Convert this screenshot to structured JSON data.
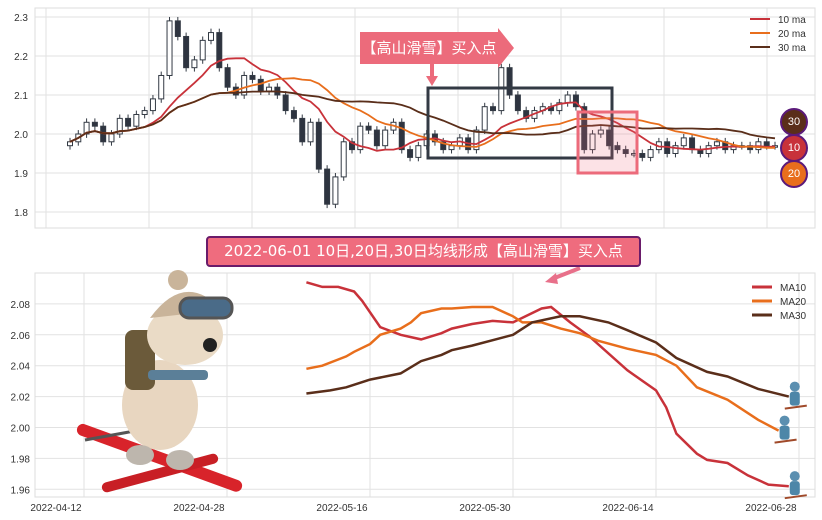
{
  "chart_data": [
    {
      "type": "candlestick",
      "ylim": [
        1.759,
        2.323
      ],
      "yticks": [
        1.8,
        1.9,
        2.0,
        2.1,
        2.2,
        2.3
      ],
      "grid": true,
      "legend_placement": "top-right",
      "ma_windows": [
        10,
        20,
        30
      ],
      "legend": [
        {
          "name": "10 ma",
          "color": "#c8323a"
        },
        {
          "name": "20 ma",
          "color": "#e86e1c"
        },
        {
          "name": "30 ma",
          "color": "#5a2e1a"
        }
      ],
      "up_color": "#ffffff",
      "down_color": "#2e3440",
      "close": [
        1.98,
        2.0,
        2.03,
        2.02,
        1.98,
        2.0,
        2.04,
        2.02,
        2.05,
        2.06,
        2.09,
        2.15,
        2.29,
        2.25,
        2.17,
        2.19,
        2.24,
        2.26,
        2.17,
        2.12,
        2.1,
        2.15,
        2.14,
        2.11,
        2.12,
        2.1,
        2.06,
        2.04,
        1.98,
        2.03,
        1.91,
        1.82,
        1.89,
        1.98,
        1.96,
        2.02,
        2.01,
        1.97,
        2.01,
        2.03,
        1.96,
        1.94,
        1.97,
        2.0,
        1.98,
        1.96,
        1.97,
        1.99,
        1.96,
        2.01,
        2.07,
        2.06,
        2.17,
        2.1,
        2.06,
        2.04,
        2.06,
        2.07,
        2.06,
        2.08,
        2.1,
        2.07,
        1.96,
        2.0,
        2.01,
        1.97,
        1.96,
        1.95,
        1.95,
        1.94,
        1.96,
        1.98,
        1.95,
        1.97,
        1.99,
        1.96,
        1.95,
        1.97,
        1.98,
        1.96,
        1.97,
        1.97,
        1.96,
        1.98,
        1.97,
        1.97
      ]
    },
    {
      "type": "line",
      "ylim": [
        1.955,
        2.1
      ],
      "yticks": [
        1.96,
        1.98,
        2.0,
        2.02,
        2.04,
        2.06,
        2.08
      ],
      "xticks": [
        "2022-04-12",
        "2022-04-28",
        "2022-05-16",
        "2022-05-30",
        "2022-06-14",
        "2022-06-28"
      ],
      "grid": true,
      "legend_placement": "top-right",
      "series": [
        {
          "name": "MA10",
          "color": "#c8323a",
          "points": [
            [
              "2022-05-08",
              2.094
            ],
            [
              "2022-05-10",
              2.091
            ],
            [
              "2022-05-12",
              2.091
            ],
            [
              "2022-05-14",
              2.088
            ],
            [
              "2022-05-15",
              2.082
            ],
            [
              "2022-05-17",
              2.065
            ],
            [
              "2022-05-19",
              2.06
            ],
            [
              "2022-05-21",
              2.057
            ],
            [
              "2022-05-23",
              2.061
            ],
            [
              "2022-05-24",
              2.064
            ],
            [
              "2022-05-26",
              2.067
            ],
            [
              "2022-05-28",
              2.069
            ],
            [
              "2022-05-30",
              2.068
            ],
            [
              "2022-05-31",
              2.071
            ],
            [
              "2022-06-02",
              2.077
            ],
            [
              "2022-06-03",
              2.078
            ],
            [
              "2022-06-05",
              2.068
            ],
            [
              "2022-06-07",
              2.059
            ],
            [
              "2022-06-11",
              2.037
            ],
            [
              "2022-06-14",
              2.024
            ],
            [
              "2022-06-15",
              2.013
            ],
            [
              "2022-06-16",
              1.996
            ],
            [
              "2022-06-18",
              1.983
            ],
            [
              "2022-06-19",
              1.979
            ],
            [
              "2022-06-21",
              1.977
            ],
            [
              "2022-06-23",
              1.969
            ],
            [
              "2022-06-25",
              1.963
            ],
            [
              "2022-06-27",
              1.962
            ]
          ]
        },
        {
          "name": "MA20",
          "color": "#e86e1c",
          "points": [
            [
              "2022-05-08",
              2.038
            ],
            [
              "2022-05-10",
              2.04
            ],
            [
              "2022-05-12",
              2.044
            ],
            [
              "2022-05-13",
              2.046
            ],
            [
              "2022-05-14",
              2.049
            ],
            [
              "2022-05-16",
              2.054
            ],
            [
              "2022-05-17",
              2.06
            ],
            [
              "2022-05-19",
              2.064
            ],
            [
              "2022-05-20",
              2.068
            ],
            [
              "2022-05-21",
              2.074
            ],
            [
              "2022-05-23",
              2.077
            ],
            [
              "2022-05-24",
              2.077
            ],
            [
              "2022-05-26",
              2.078
            ],
            [
              "2022-05-28",
              2.078
            ],
            [
              "2022-05-30",
              2.072
            ],
            [
              "2022-05-31",
              2.068
            ],
            [
              "2022-06-02",
              2.068
            ],
            [
              "2022-06-04",
              2.064
            ],
            [
              "2022-06-06",
              2.061
            ],
            [
              "2022-06-08",
              2.056
            ],
            [
              "2022-06-11",
              2.051
            ],
            [
              "2022-06-14",
              2.047
            ],
            [
              "2022-06-16",
              2.04
            ],
            [
              "2022-06-18",
              2.026
            ],
            [
              "2022-06-21",
              2.018
            ],
            [
              "2022-06-24",
              2.005
            ],
            [
              "2022-06-26",
              1.998
            ]
          ]
        },
        {
          "name": "MA30",
          "color": "#5a2e1a",
          "points": [
            [
              "2022-05-08",
              2.022
            ],
            [
              "2022-05-11",
              2.024
            ],
            [
              "2022-05-13",
              2.026
            ],
            [
              "2022-05-16",
              2.031
            ],
            [
              "2022-05-19",
              2.035
            ],
            [
              "2022-05-21",
              2.043
            ],
            [
              "2022-05-23",
              2.047
            ],
            [
              "2022-05-24",
              2.05
            ],
            [
              "2022-05-26",
              2.053
            ],
            [
              "2022-05-30",
              2.06
            ],
            [
              "2022-06-01",
              2.068
            ],
            [
              "2022-06-04",
              2.072
            ],
            [
              "2022-06-06",
              2.072
            ],
            [
              "2022-06-09",
              2.068
            ],
            [
              "2022-06-11",
              2.063
            ],
            [
              "2022-06-14",
              2.055
            ],
            [
              "2022-06-16",
              2.045
            ],
            [
              "2022-06-19",
              2.036
            ],
            [
              "2022-06-21",
              2.033
            ],
            [
              "2022-06-24",
              2.025
            ],
            [
              "2022-06-27",
              2.02
            ]
          ]
        }
      ]
    }
  ],
  "annotations": {
    "top_banner": "【高山滑雪】买入点",
    "mid_banner": "2022-06-01 10日,20日,30日均线形成【高山滑雪】买入点",
    "badges": [
      {
        "label": "30",
        "color": "#5a2e1a"
      },
      {
        "label": "10",
        "color": "#c8323a"
      },
      {
        "label": "20",
        "color": "#e86e1c"
      }
    ],
    "banner_color": "#ec6b7b"
  }
}
